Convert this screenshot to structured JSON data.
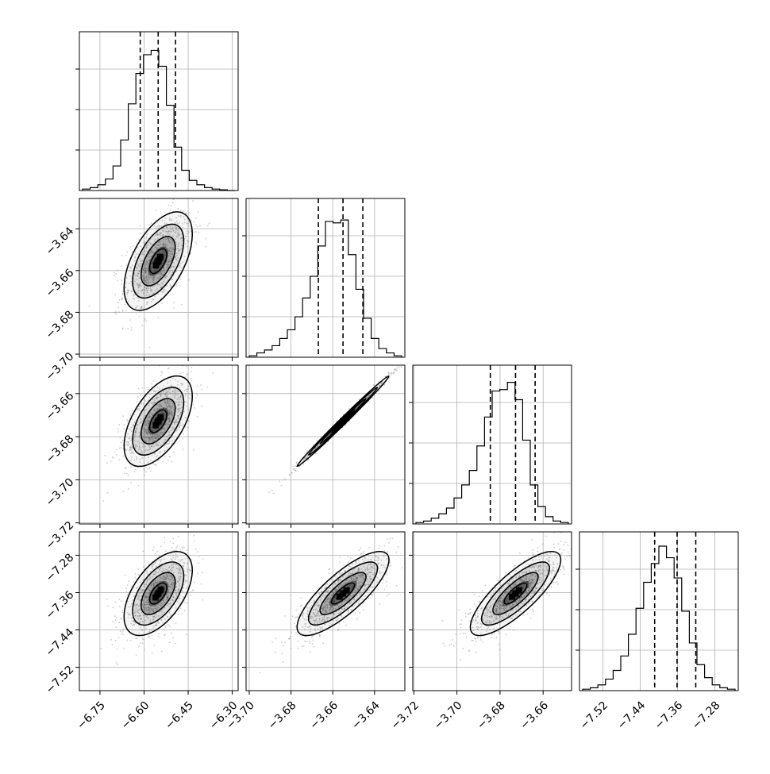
{
  "chart_data": {
    "type": "corner",
    "title": "",
    "parameters": [
      {
        "index": 0,
        "ticks": [
          -6.75,
          -6.6,
          -6.45,
          -6.3
        ],
        "tick_labels": [
          "−6.75",
          "−6.60",
          "−6.45",
          "−6.30"
        ],
        "range": [
          -6.82,
          -6.28
        ],
        "quantiles": [
          -6.613,
          -6.552,
          -6.493
        ],
        "histogram": {
          "counts": [
            1,
            2,
            4,
            8,
            17,
            35,
            60,
            81,
            94,
            97,
            86,
            59,
            30,
            14,
            7,
            4,
            2,
            1,
            0.5,
            0
          ],
          "max": 100
        }
      },
      {
        "index": 1,
        "ticks": [
          -3.7,
          -3.68,
          -3.66,
          -3.64
        ],
        "tick_labels": [
          "−3.70",
          "−3.68",
          "−3.66",
          "−3.64"
        ],
        "range": [
          -3.7015,
          -3.6255
        ],
        "quantiles": [
          -3.6669,
          -3.6551,
          -3.6456
        ],
        "histogram": {
          "counts": [
            1,
            3,
            5,
            8,
            13,
            19,
            28,
            41,
            56,
            77,
            94,
            93,
            95,
            71,
            47,
            27,
            13,
            6,
            3,
            1
          ],
          "max": 100
        }
      },
      {
        "index": 2,
        "ticks": [
          -3.72,
          -3.7,
          -3.68,
          -3.66
        ],
        "tick_labels": [
          "−3.72",
          "−3.70",
          "−3.68",
          "−3.66"
        ],
        "range": [
          -3.7205,
          -3.6468
        ],
        "quantiles": [
          -3.6845,
          -3.6728,
          -3.6637
        ],
        "histogram": {
          "counts": [
            1,
            2,
            4,
            7,
            11,
            18,
            27,
            37,
            54,
            74,
            92,
            93,
            98,
            86,
            58,
            27,
            12,
            5,
            2,
            1
          ],
          "max": 100
        }
      },
      {
        "index": 3,
        "ticks": [
          -7.52,
          -7.44,
          -7.36,
          -7.28
        ],
        "tick_labels": [
          "−7.52",
          "−7.44",
          "−7.36",
          "−7.28"
        ],
        "range": [
          -7.57,
          -7.23
        ],
        "quantiles": [
          -7.409,
          -7.361,
          -7.321
        ],
        "histogram": {
          "counts": [
            1,
            2,
            4,
            8,
            14,
            24,
            39,
            57,
            75,
            88,
            100,
            92,
            78,
            55,
            33,
            18,
            9,
            4,
            2,
            1
          ],
          "max": 100
        }
      }
    ],
    "pairs": [
      {
        "row": 1,
        "col": 0,
        "center": [
          -6.552,
          -3.6555
        ],
        "sigma": [
          0.058,
          0.0118
        ],
        "corr": 0.55
      },
      {
        "row": 2,
        "col": 0,
        "center": [
          -6.552,
          -3.6728
        ],
        "sigma": [
          0.058,
          0.0105
        ],
        "corr": 0.55
      },
      {
        "row": 2,
        "col": 1,
        "center": [
          -3.6551,
          -3.6728
        ],
        "sigma": [
          0.011,
          0.0105
        ],
        "corr": 0.995
      },
      {
        "row": 3,
        "col": 0,
        "center": [
          -6.552,
          -7.362
        ],
        "sigma": [
          0.058,
          0.045
        ],
        "corr": 0.55
      },
      {
        "row": 3,
        "col": 1,
        "center": [
          -3.6551,
          -7.362
        ],
        "sigma": [
          0.011,
          0.045
        ],
        "corr": 0.8
      },
      {
        "row": 3,
        "col": 2,
        "center": [
          -3.6728,
          -7.362
        ],
        "sigma": [
          0.0105,
          0.045
        ],
        "corr": 0.8
      }
    ],
    "contour_levels_sigma": [
      0.5,
      1.0,
      1.5,
      2.0
    ],
    "grid": true,
    "legend": "none",
    "colors": {
      "line": "#000000",
      "points": "#7f7f7f",
      "grid": "#b0b0b0",
      "density": "#000000"
    }
  }
}
